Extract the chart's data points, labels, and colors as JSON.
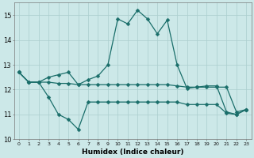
{
  "xlabel": "Humidex (Indice chaleur)",
  "xlim": [
    -0.5,
    23.5
  ],
  "ylim": [
    10,
    15.5
  ],
  "yticks": [
    10,
    11,
    12,
    13,
    14,
    15
  ],
  "xticks": [
    0,
    1,
    2,
    3,
    4,
    5,
    6,
    7,
    8,
    9,
    10,
    11,
    12,
    13,
    14,
    15,
    16,
    17,
    18,
    19,
    20,
    21,
    22,
    23
  ],
  "background_color": "#cce8e8",
  "grid_color": "#aacece",
  "line_color": "#1a6e6a",
  "line1_x": [
    0,
    1,
    2,
    3,
    4,
    5,
    6,
    7,
    8,
    9,
    10,
    11,
    12,
    13,
    14,
    15,
    16,
    17,
    18,
    19,
    20,
    21,
    22,
    23
  ],
  "line1_y": [
    12.7,
    12.3,
    12.3,
    12.3,
    12.25,
    12.25,
    12.2,
    12.2,
    12.2,
    12.2,
    12.2,
    12.2,
    12.2,
    12.2,
    12.2,
    12.2,
    12.15,
    12.1,
    12.1,
    12.1,
    12.1,
    12.1,
    11.1,
    11.2
  ],
  "line2_x": [
    0,
    1,
    2,
    3,
    4,
    5,
    6,
    7,
    8,
    9,
    10,
    11,
    12,
    13,
    14,
    15,
    16,
    17,
    18,
    19,
    20,
    21,
    22,
    23
  ],
  "line2_y": [
    12.7,
    12.3,
    12.3,
    11.7,
    11.0,
    10.8,
    10.4,
    11.5,
    11.5,
    11.5,
    11.5,
    11.5,
    11.5,
    11.5,
    11.5,
    11.5,
    11.5,
    11.4,
    11.4,
    11.4,
    11.4,
    11.05,
    11.0,
    11.2
  ],
  "line3_x": [
    0,
    1,
    2,
    3,
    4,
    5,
    6,
    7,
    8,
    9,
    10,
    11,
    12,
    13,
    14,
    15,
    16,
    17,
    18,
    19,
    20,
    21,
    22,
    23
  ],
  "line3_y": [
    12.7,
    12.3,
    12.3,
    12.5,
    12.6,
    12.7,
    12.2,
    12.4,
    12.55,
    13.0,
    14.85,
    14.65,
    15.2,
    14.85,
    14.25,
    14.8,
    13.0,
    12.05,
    12.1,
    12.15,
    12.15,
    11.1,
    11.0,
    11.2
  ]
}
